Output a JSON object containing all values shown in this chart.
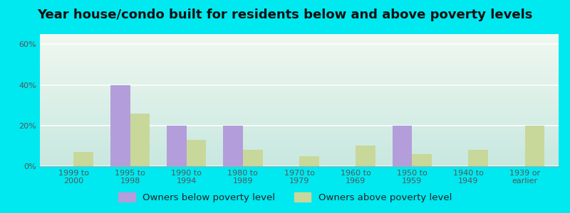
{
  "title": "Year house/condo built for residents below and above poverty levels",
  "categories": [
    "1999 to\n2000",
    "1995 to\n1998",
    "1990 to\n1994",
    "1980 to\n1989",
    "1970 to\n1979",
    "1960 to\n1969",
    "1950 to\n1959",
    "1940 to\n1949",
    "1939 or\nearlier"
  ],
  "below_poverty": [
    0,
    40,
    20,
    20,
    0,
    0,
    20,
    0,
    0
  ],
  "above_poverty": [
    7,
    26,
    13,
    8,
    5,
    10,
    6,
    8,
    20
  ],
  "below_color": "#b39ddb",
  "above_color": "#c8d89a",
  "background_outer": "#00e8f0",
  "ylim": [
    0,
    65
  ],
  "yticks": [
    0,
    20,
    40,
    60
  ],
  "ytick_labels": [
    "0%",
    "20%",
    "40%",
    "60%"
  ],
  "legend_below": "Owners below poverty level",
  "legend_above": "Owners above poverty level",
  "bar_width": 0.35,
  "title_fontsize": 13,
  "tick_fontsize": 8,
  "legend_fontsize": 9.5,
  "grad_top_left": "#c8ebe8",
  "grad_top_right": "#e8f5e8",
  "grad_bottom_left": "#c8ebe8",
  "grad_bottom_right": "#e8f5e8"
}
